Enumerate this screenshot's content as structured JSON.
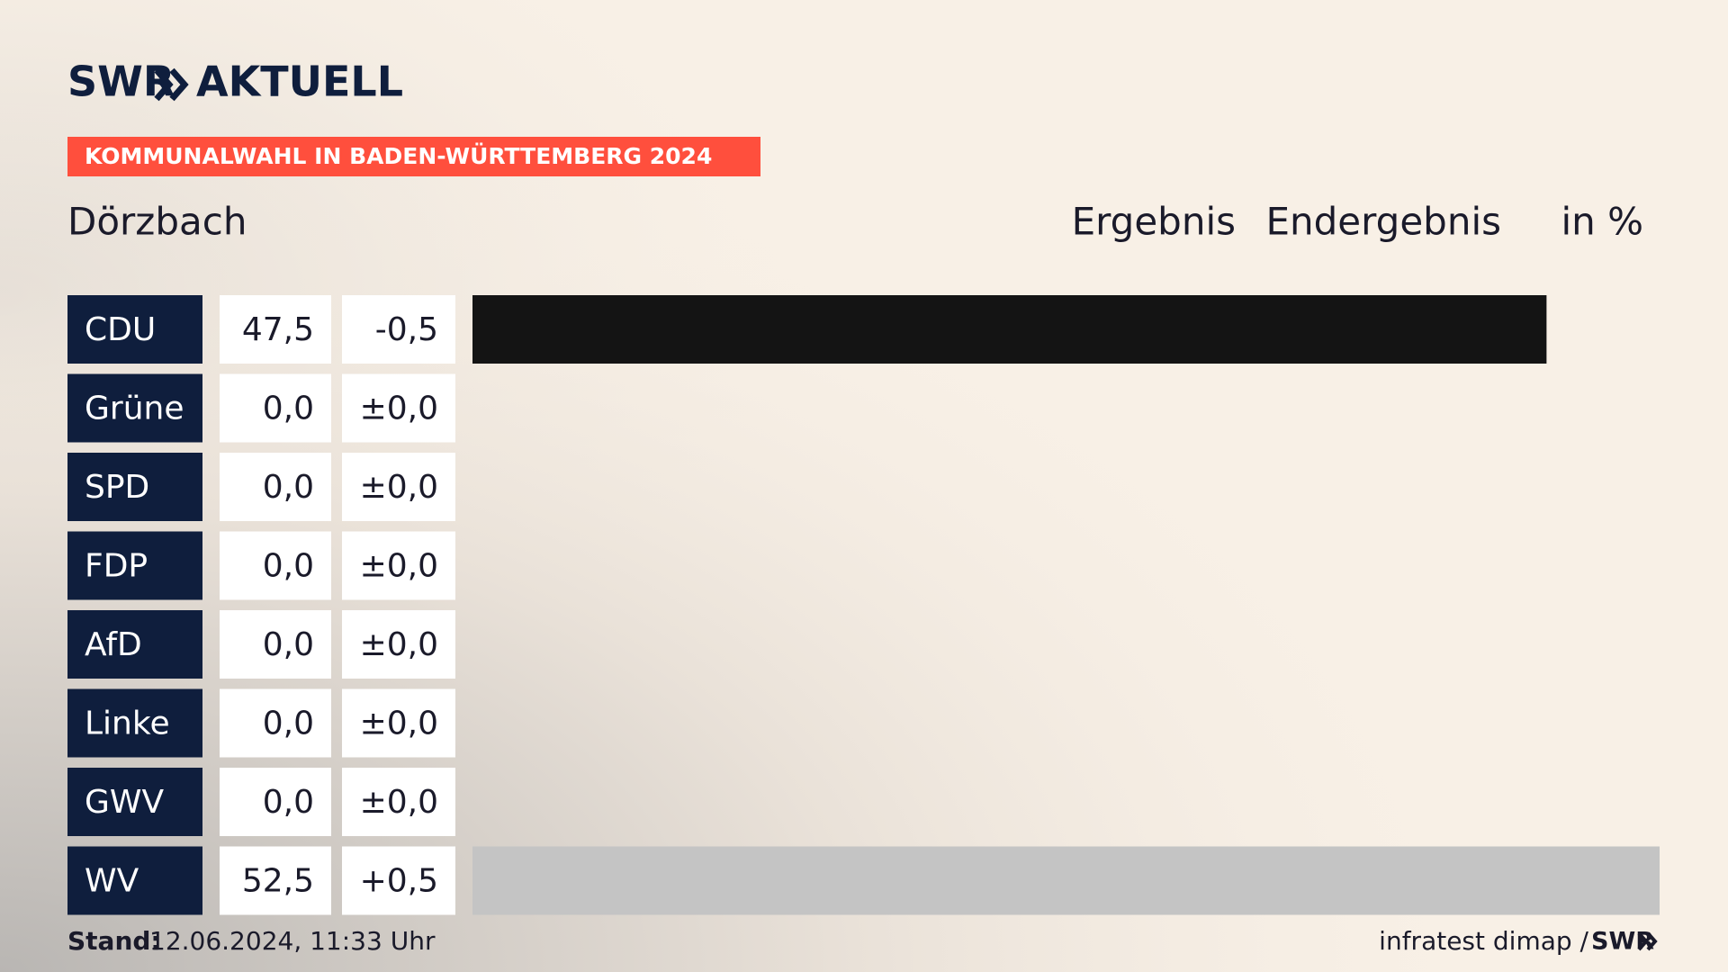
{
  "chart_data": {
    "type": "bar",
    "brand": "SWR",
    "brand_suffix": "AKTUELL",
    "kicker": "KOMMUNALWAHL IN BADEN-WÜRTTEMBERG 2024",
    "title": "Dörzbach",
    "column_headers": [
      "Ergebnis",
      "Endergebnis",
      "in %"
    ],
    "categories": [
      "CDU",
      "Grüne",
      "SPD",
      "FDP",
      "AfD",
      "Linke",
      "GWV",
      "WV"
    ],
    "values": [
      47.5,
      0,
      0,
      0,
      0,
      0,
      0,
      52.5
    ],
    "value_labels": [
      "47,5",
      "0,0",
      "0,0",
      "0,0",
      "0,0",
      "0,0",
      "0,0",
      "52,5"
    ],
    "colors": [
      "#141414",
      null,
      null,
      null,
      null,
      null,
      null,
      "#c4c4c4"
    ],
    "changes": {
      "values": [
        -0.5,
        0,
        0,
        0,
        0,
        0,
        0,
        0.5
      ],
      "value_labels": [
        "-0,5",
        "±0,0",
        "±0,0",
        "±0,0",
        "±0,0",
        "±0,0",
        "±0,0",
        "+0,5"
      ]
    },
    "xlim": [
      0,
      52.5
    ],
    "footer_label": "Stand:",
    "footer_date": "12.06.2024, 11:33 Uhr",
    "source": "infratest dimap /",
    "source_brand": "SWR"
  }
}
